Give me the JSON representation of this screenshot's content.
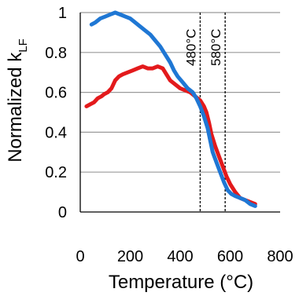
{
  "chart_data": {
    "type": "line",
    "title": "",
    "xlabel": "Temperature (°C)",
    "ylabel": "Normalized k",
    "ylabel_sub": "LF",
    "xlim": [
      0,
      800
    ],
    "ylim": [
      0,
      1
    ],
    "xticks": [
      {
        "value": 0,
        "label": "0"
      },
      {
        "value": 200,
        "label": "200"
      },
      {
        "value": 400,
        "label": "400"
      },
      {
        "value": 600,
        "label": "600"
      },
      {
        "value": 800,
        "label": "800"
      }
    ],
    "yticks": [
      {
        "value": 0,
        "label": "0"
      },
      {
        "value": 0.2,
        "label": "0.2"
      },
      {
        "value": 0.4,
        "label": "0.4"
      },
      {
        "value": 0.6,
        "label": "0.6"
      },
      {
        "value": 0.8,
        "label": "0.8"
      },
      {
        "value": 1,
        "label": "1"
      }
    ],
    "grid": {
      "horizontal": true,
      "vertical": false
    },
    "annotations": [
      {
        "x": 480,
        "label": "480°C"
      },
      {
        "x": 580,
        "label": "580°C"
      }
    ],
    "series": [
      {
        "color": "#e31a1c",
        "points": [
          [
            25,
            0.53
          ],
          [
            40,
            0.54
          ],
          [
            55,
            0.55
          ],
          [
            70,
            0.57
          ],
          [
            85,
            0.58
          ],
          [
            95,
            0.59
          ],
          [
            110,
            0.6
          ],
          [
            125,
            0.62
          ],
          [
            140,
            0.66
          ],
          [
            155,
            0.68
          ],
          [
            170,
            0.69
          ],
          [
            190,
            0.7
          ],
          [
            210,
            0.71
          ],
          [
            230,
            0.72
          ],
          [
            250,
            0.73
          ],
          [
            270,
            0.72
          ],
          [
            290,
            0.72
          ],
          [
            310,
            0.73
          ],
          [
            330,
            0.72
          ],
          [
            345,
            0.69
          ],
          [
            360,
            0.66
          ],
          [
            380,
            0.64
          ],
          [
            400,
            0.62
          ],
          [
            420,
            0.61
          ],
          [
            440,
            0.6
          ],
          [
            460,
            0.58
          ],
          [
            480,
            0.56
          ],
          [
            495,
            0.53
          ],
          [
            505,
            0.5
          ],
          [
            515,
            0.45
          ],
          [
            525,
            0.39
          ],
          [
            540,
            0.33
          ],
          [
            555,
            0.28
          ],
          [
            570,
            0.23
          ],
          [
            585,
            0.18
          ],
          [
            600,
            0.14
          ],
          [
            620,
            0.1
          ],
          [
            640,
            0.07
          ],
          [
            660,
            0.06
          ],
          [
            680,
            0.05
          ],
          [
            700,
            0.04
          ]
        ]
      },
      {
        "color": "#1f77d4",
        "points": [
          [
            45,
            0.94
          ],
          [
            60,
            0.95
          ],
          [
            80,
            0.97
          ],
          [
            100,
            0.98
          ],
          [
            120,
            0.99
          ],
          [
            140,
            1.0
          ],
          [
            160,
            0.99
          ],
          [
            180,
            0.98
          ],
          [
            200,
            0.97
          ],
          [
            220,
            0.95
          ],
          [
            240,
            0.93
          ],
          [
            260,
            0.91
          ],
          [
            280,
            0.89
          ],
          [
            300,
            0.86
          ],
          [
            320,
            0.83
          ],
          [
            340,
            0.79
          ],
          [
            360,
            0.75
          ],
          [
            375,
            0.71
          ],
          [
            390,
            0.68
          ],
          [
            410,
            0.65
          ],
          [
            430,
            0.62
          ],
          [
            450,
            0.6
          ],
          [
            465,
            0.57
          ],
          [
            480,
            0.53
          ],
          [
            495,
            0.48
          ],
          [
            510,
            0.42
          ],
          [
            520,
            0.36
          ],
          [
            530,
            0.3
          ],
          [
            545,
            0.25
          ],
          [
            560,
            0.2
          ],
          [
            575,
            0.15
          ],
          [
            590,
            0.11
          ],
          [
            605,
            0.09
          ],
          [
            620,
            0.08
          ],
          [
            640,
            0.07
          ],
          [
            660,
            0.06
          ],
          [
            680,
            0.04
          ],
          [
            700,
            0.03
          ]
        ]
      }
    ]
  }
}
